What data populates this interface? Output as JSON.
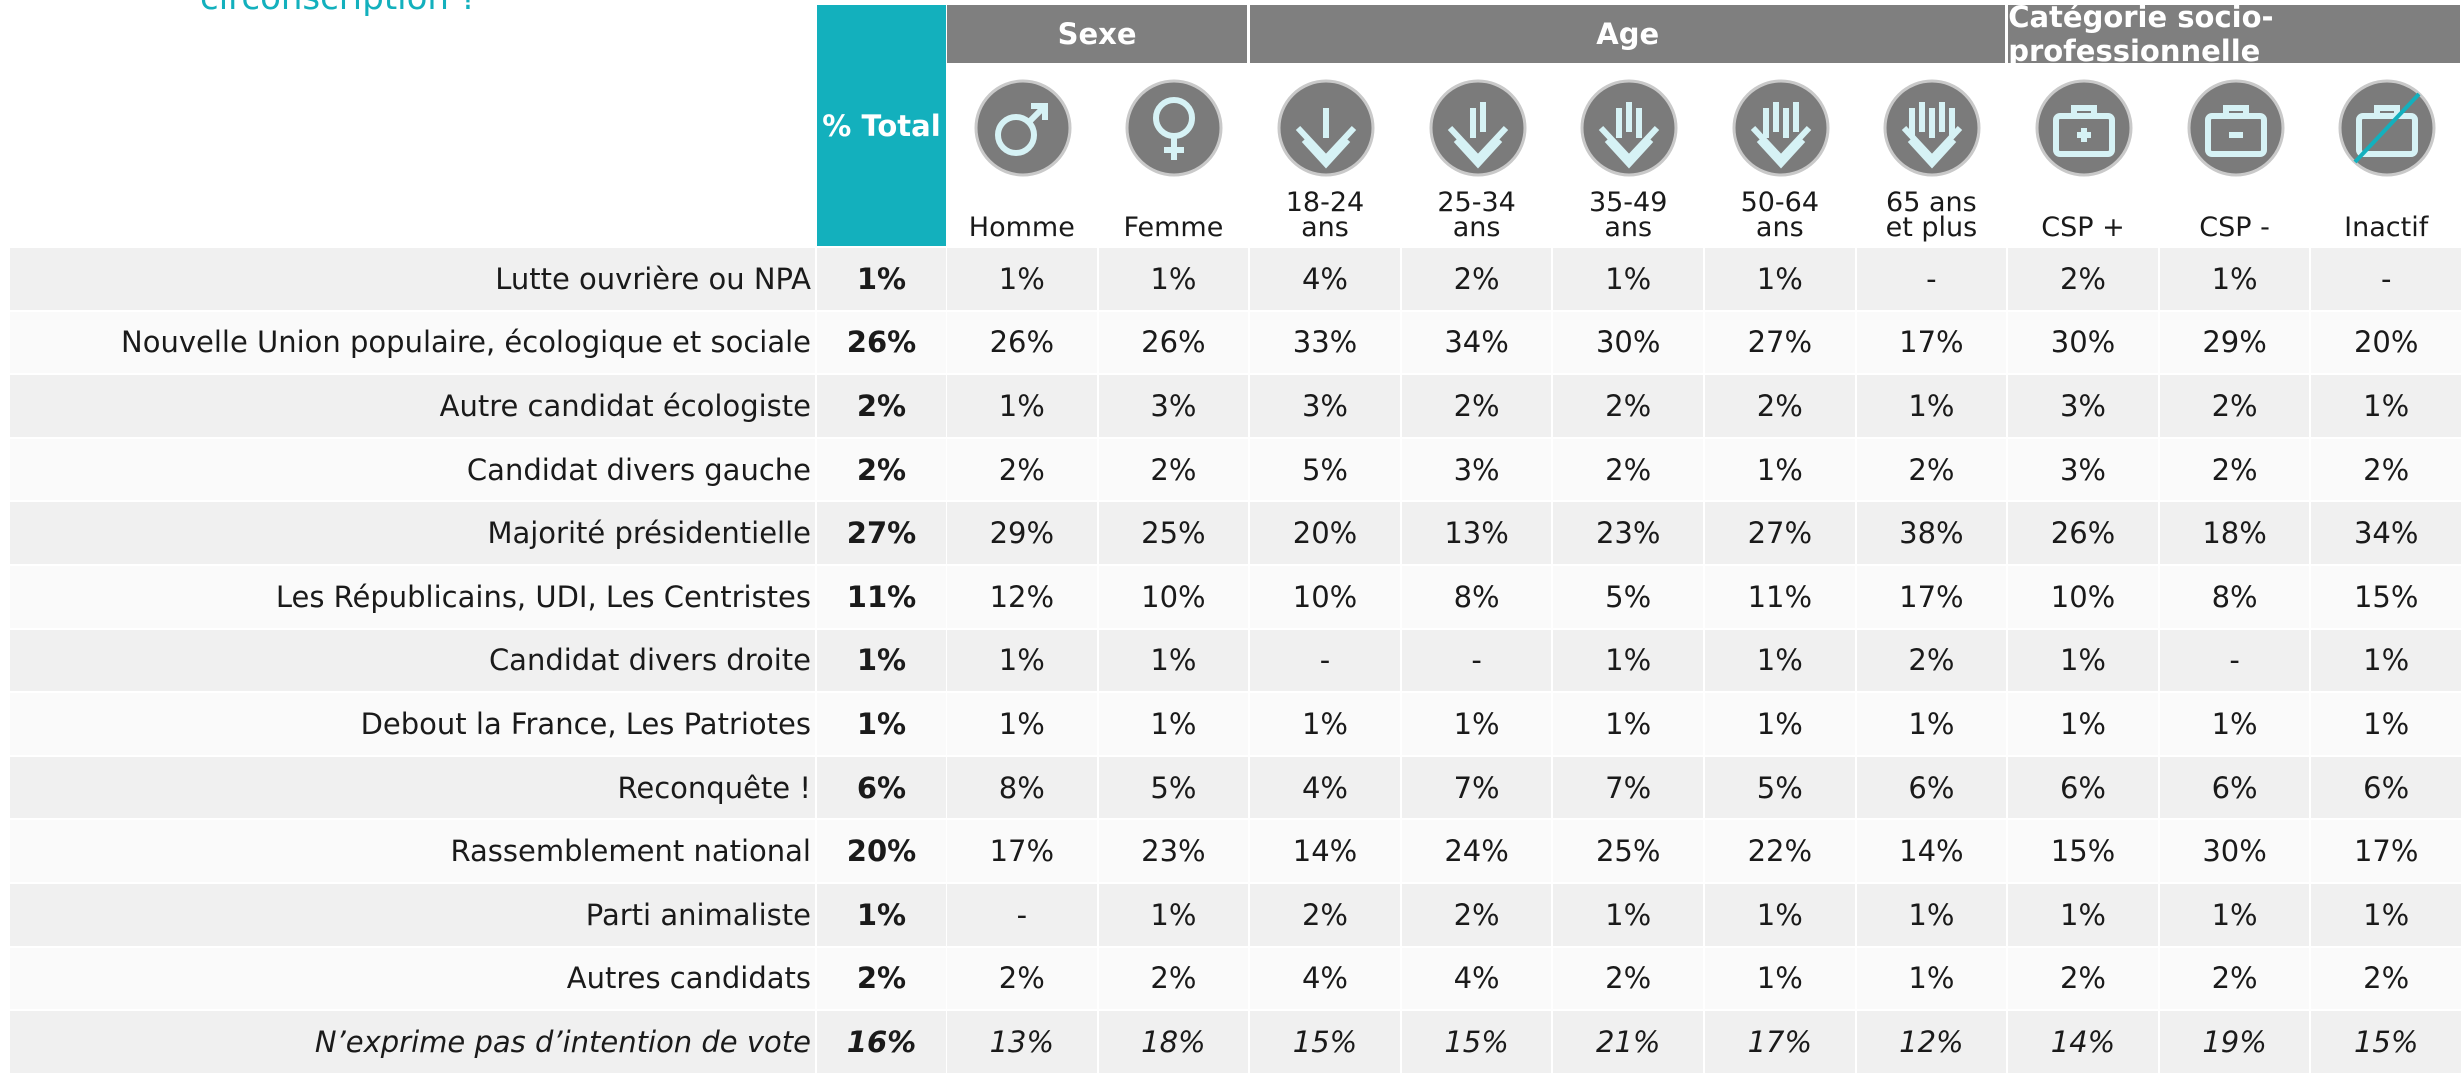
{
  "intro": "circonscription ?",
  "header": {
    "total": "% Total",
    "groups": [
      {
        "label": "Sexe",
        "columns": [
          "Homme",
          "Femme"
        ]
      },
      {
        "label": "Age",
        "columns": [
          "18-24\nans",
          "25-34\nans",
          "35-49\nans",
          "50-64\nans",
          "65 ans\net plus"
        ]
      },
      {
        "label": "Catégorie socio-professionnelle",
        "columns": [
          "CSP +",
          "CSP -",
          "Inactif"
        ]
      }
    ]
  },
  "table": {
    "rows": [
      {
        "label": "Lutte ouvrière ou NPA",
        "values": [
          "1%",
          "1%",
          "1%",
          "4%",
          "2%",
          "1%",
          "1%",
          "-",
          "2%",
          "1%",
          "-"
        ]
      },
      {
        "label": "Nouvelle Union populaire, écologique et sociale",
        "values": [
          "26%",
          "26%",
          "26%",
          "33%",
          "34%",
          "30%",
          "27%",
          "17%",
          "30%",
          "29%",
          "20%"
        ]
      },
      {
        "label": "Autre candidat écologiste",
        "values": [
          "2%",
          "1%",
          "3%",
          "3%",
          "2%",
          "2%",
          "2%",
          "1%",
          "3%",
          "2%",
          "1%"
        ]
      },
      {
        "label": "Candidat divers gauche",
        "values": [
          "2%",
          "2%",
          "2%",
          "5%",
          "3%",
          "2%",
          "1%",
          "2%",
          "3%",
          "2%",
          "2%"
        ]
      },
      {
        "label": "Majorité présidentielle",
        "values": [
          "27%",
          "29%",
          "25%",
          "20%",
          "13%",
          "23%",
          "27%",
          "38%",
          "26%",
          "18%",
          "34%"
        ]
      },
      {
        "label": "Les Républicains, UDI, Les Centristes",
        "values": [
          "11%",
          "12%",
          "10%",
          "10%",
          "8%",
          "5%",
          "11%",
          "17%",
          "10%",
          "8%",
          "15%"
        ]
      },
      {
        "label": "Candidat divers droite",
        "values": [
          "1%",
          "1%",
          "1%",
          "-",
          "-",
          "1%",
          "1%",
          "2%",
          "1%",
          "-",
          "1%"
        ]
      },
      {
        "label": "Debout la France, Les Patriotes",
        "values": [
          "1%",
          "1%",
          "1%",
          "1%",
          "1%",
          "1%",
          "1%",
          "1%",
          "1%",
          "1%",
          "1%"
        ]
      },
      {
        "label": "Reconquête !",
        "values": [
          "6%",
          "8%",
          "5%",
          "4%",
          "7%",
          "7%",
          "5%",
          "6%",
          "6%",
          "6%",
          "6%"
        ]
      },
      {
        "label": "Rassemblement national",
        "values": [
          "20%",
          "17%",
          "23%",
          "14%",
          "24%",
          "25%",
          "22%",
          "14%",
          "15%",
          "30%",
          "17%"
        ]
      },
      {
        "label": "Parti animaliste",
        "values": [
          "1%",
          "-",
          "1%",
          "2%",
          "2%",
          "1%",
          "1%",
          "1%",
          "1%",
          "1%",
          "1%"
        ]
      },
      {
        "label": "Autres candidats",
        "values": [
          "2%",
          "2%",
          "2%",
          "4%",
          "4%",
          "2%",
          "1%",
          "1%",
          "2%",
          "2%",
          "2%"
        ]
      },
      {
        "label": "N’exprime pas d’intention de vote",
        "values": [
          "16%",
          "13%",
          "18%",
          "15%",
          "15%",
          "21%",
          "17%",
          "12%",
          "14%",
          "19%",
          "15%"
        ]
      }
    ]
  }
}
